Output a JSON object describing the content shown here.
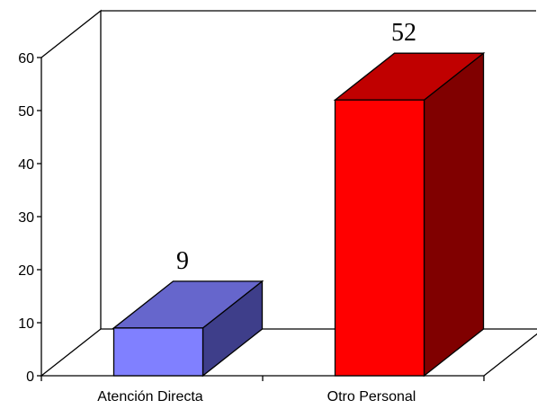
{
  "chart_data": {
    "type": "bar",
    "three_d": true,
    "categories": [
      "Atención Directa",
      "Otro Personal"
    ],
    "values": [
      9,
      52
    ],
    "data_labels": [
      "9",
      "52"
    ],
    "y_ticks": [
      "0",
      "10",
      "20",
      "30",
      "40",
      "50",
      "60"
    ],
    "ylim": [
      0,
      60
    ],
    "title": "",
    "xlabel": "",
    "ylabel": "",
    "grid": false,
    "legend": "none",
    "colors": {
      "bars": [
        {
          "front": "#8080FF",
          "top": "#6666CC",
          "side": "#3E3E8A"
        },
        {
          "front": "#FF0000",
          "top": "#C00000",
          "side": "#800000"
        }
      ]
    }
  }
}
